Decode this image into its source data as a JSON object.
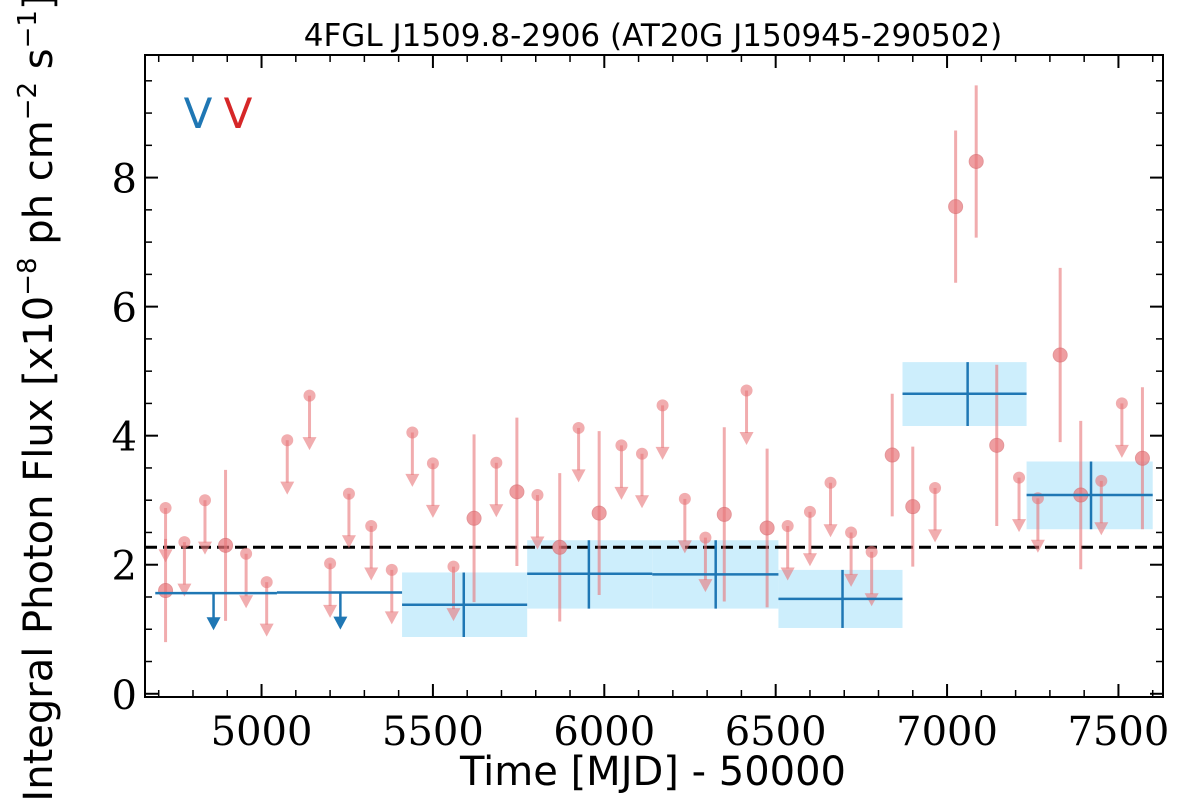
{
  "chart_data": {
    "type": "scatter",
    "title": "4FGL J1509.8-2906 (AT20G J150945-290502)",
    "xlabel": "Time [MJD] - 50000",
    "ylabel": "Integral Photon Flux [x10$^{-8}$ ph cm$^{-2}$ s$^{-1}$]",
    "ylabel_parts": {
      "pre": "Integral Photon Flux [x10",
      "exp1": "−8",
      "mid": " ph cm",
      "exp2": "−2",
      "mid2": " s",
      "exp3": "−1",
      "post": "]"
    },
    "xlim": [
      4660,
      7630
    ],
    "ylim": [
      -0.05,
      9.9
    ],
    "x_ticks": [
      5000,
      5500,
      6000,
      6500,
      7000,
      7500
    ],
    "x_tick_labels": [
      "5000",
      "5500",
      "6000",
      "6500",
      "7000",
      "7500"
    ],
    "y_ticks": [
      0,
      2,
      4,
      6,
      8
    ],
    "y_tick_labels": [
      "0",
      "2",
      "4",
      "6",
      "8"
    ],
    "corner_labels": [
      {
        "text": "V",
        "color": "#1f77b4"
      },
      {
        "text": "V",
        "color": "#d62728"
      }
    ],
    "mean_flux": 2.27,
    "colors": {
      "short_bins": "#e8767a",
      "long_bins": "#1f77b4",
      "long_band": "#cdeefc",
      "mean_line": "#000000"
    },
    "series": [
      {
        "points": [
          {
            "x": 4720,
            "y": 1.6,
            "yerr": 0.8
          },
          {
            "x": 4895,
            "y": 2.3,
            "yerr": 1.17
          },
          {
            "x": 5620,
            "y": 2.72,
            "yerr": 1.3
          },
          {
            "x": 5745,
            "y": 3.13,
            "yerr": 1.15
          },
          {
            "x": 5870,
            "y": 2.27,
            "yerr": 1.15
          },
          {
            "x": 5985,
            "y": 2.8,
            "yerr": 1.27
          },
          {
            "x": 6350,
            "y": 2.78,
            "yerr": 1.35
          },
          {
            "x": 6475,
            "y": 2.57,
            "yerr": 1.23
          },
          {
            "x": 6840,
            "y": 3.7,
            "yerr": 0.95
          },
          {
            "x": 6900,
            "y": 2.9,
            "yerr": 0.93
          },
          {
            "x": 7025,
            "y": 7.55,
            "yerr": 1.18
          },
          {
            "x": 7085,
            "y": 8.25,
            "yerr": 1.18
          },
          {
            "x": 7145,
            "y": 3.85,
            "yerr": 1.25
          },
          {
            "x": 7330,
            "y": 5.25,
            "yerr": 1.35
          },
          {
            "x": 7390,
            "y": 3.08,
            "yerr": 1.15
          },
          {
            "x": 7570,
            "y": 3.65,
            "yerr": 1.1
          }
        ],
        "upper_limits": [
          {
            "x": 4720,
            "y": 2.88
          },
          {
            "x": 4775,
            "y": 2.35
          },
          {
            "x": 4835,
            "y": 3.0
          },
          {
            "x": 4955,
            "y": 2.17
          },
          {
            "x": 5015,
            "y": 1.73
          },
          {
            "x": 5075,
            "y": 3.93
          },
          {
            "x": 5140,
            "y": 4.62
          },
          {
            "x": 5200,
            "y": 2.02
          },
          {
            "x": 5255,
            "y": 3.1
          },
          {
            "x": 5320,
            "y": 2.6
          },
          {
            "x": 5380,
            "y": 1.92
          },
          {
            "x": 5440,
            "y": 4.05
          },
          {
            "x": 5500,
            "y": 3.57
          },
          {
            "x": 5560,
            "y": 1.97
          },
          {
            "x": 5685,
            "y": 3.58
          },
          {
            "x": 5805,
            "y": 3.08
          },
          {
            "x": 5925,
            "y": 4.12
          },
          {
            "x": 6050,
            "y": 3.85
          },
          {
            "x": 6110,
            "y": 3.72
          },
          {
            "x": 6170,
            "y": 4.47
          },
          {
            "x": 6235,
            "y": 3.02
          },
          {
            "x": 6295,
            "y": 2.42
          },
          {
            "x": 6415,
            "y": 4.7
          },
          {
            "x": 6535,
            "y": 2.6
          },
          {
            "x": 6600,
            "y": 2.82
          },
          {
            "x": 6660,
            "y": 3.27
          },
          {
            "x": 6720,
            "y": 2.5
          },
          {
            "x": 6780,
            "y": 2.2
          },
          {
            "x": 6965,
            "y": 3.19
          },
          {
            "x": 7210,
            "y": 3.35
          },
          {
            "x": 7265,
            "y": 3.03
          },
          {
            "x": 7450,
            "y": 3.3
          },
          {
            "x": 7510,
            "y": 4.5
          }
        ]
      },
      {
        "bins": [
          {
            "x": 6325,
            "x_lo": 6140,
            "x_hi": 6508,
            "y": 1.85,
            "y_lo": 1.32,
            "y_hi": 2.38
          },
          {
            "x": 7420,
            "x_lo": 7232,
            "x_hi": 7600,
            "y": 3.08,
            "y_lo": 2.55,
            "y_hi": 3.6
          },
          {
            "x": 5590,
            "x_lo": 5410,
            "x_hi": 5775,
            "y": 1.38,
            "y_lo": 0.88,
            "y_hi": 1.88
          },
          {
            "x": 5955,
            "x_lo": 5775,
            "x_hi": 6140,
            "y": 1.86,
            "y_lo": 1.32,
            "y_hi": 2.38
          },
          {
            "x": 6695,
            "x_lo": 6508,
            "x_hi": 6870,
            "y": 1.47,
            "y_lo": 1.02,
            "y_hi": 1.92
          },
          {
            "x": 7060,
            "x_lo": 6870,
            "x_hi": 7232,
            "y": 4.65,
            "y_lo": 4.15,
            "y_hi": 5.14
          }
        ],
        "upper_limits": [
          {
            "x": 4860,
            "x_lo": 4690,
            "x_hi": 5045,
            "y": 1.56
          },
          {
            "x": 5230,
            "x_lo": 5045,
            "x_hi": 5410,
            "y": 1.57
          }
        ]
      }
    ]
  }
}
